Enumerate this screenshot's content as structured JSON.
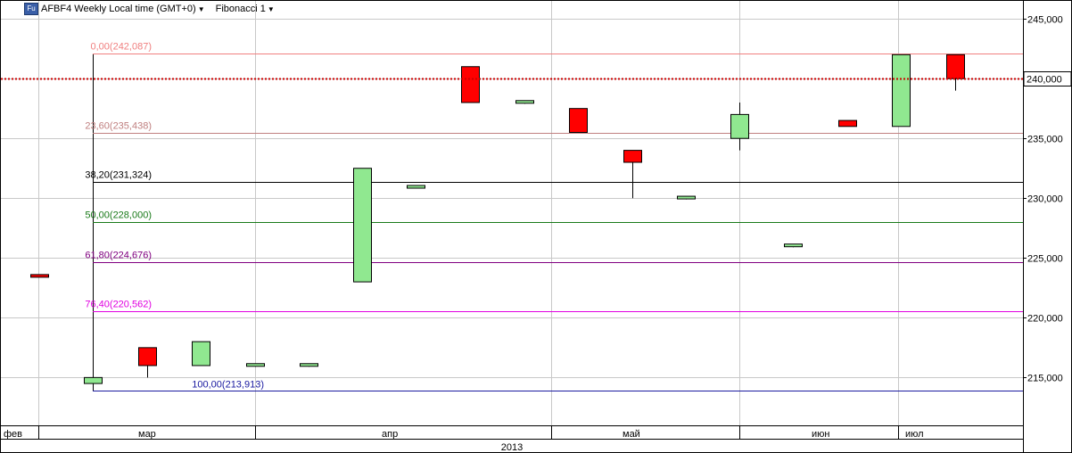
{
  "toolbar": {
    "symbol_icon": "Fu",
    "title": "AFBF4 Weekly Local time (GMT+0)",
    "indicator": "Fibonacci 1"
  },
  "colors": {
    "up": "#90e890",
    "down": "#ff0000",
    "grid": "#c8c8c8",
    "price_line": "#cc0000"
  },
  "chart_data": {
    "type": "candlestick",
    "symbol": "AFBF4",
    "timeframe": "Weekly",
    "ylim": [
      211000,
      246500
    ],
    "y_ticks": [
      "215,000",
      "220,000",
      "225,000",
      "230,000",
      "235,000",
      "240,000",
      "245,000"
    ],
    "y_tick_values": [
      215000,
      220000,
      225000,
      230000,
      235000,
      240000,
      245000
    ],
    "current_price": 240000,
    "current_price_label": "240,000",
    "month_labels": [
      "фев",
      "мар",
      "апр",
      "май",
      "июн",
      "июл"
    ],
    "year_label": "2013",
    "candles": [
      {
        "open": 223600,
        "high": 223600,
        "low": 223400,
        "close": 223400
      },
      {
        "open": 214500,
        "high": 215000,
        "low": 214000,
        "close": 215000
      },
      {
        "open": 217500,
        "high": 217500,
        "low": 215000,
        "close": 216000
      },
      {
        "open": 216000,
        "high": 218000,
        "low": 216000,
        "close": 218000
      },
      {
        "open": 216000,
        "high": 216100,
        "low": 215900,
        "close": 216100
      },
      {
        "open": 216000,
        "high": 216100,
        "low": 215900,
        "close": 216100
      },
      {
        "open": 223000,
        "high": 232500,
        "low": 223000,
        "close": 232500
      },
      {
        "open": 230900,
        "high": 231000,
        "low": 230800,
        "close": 231000
      },
      {
        "open": 241000,
        "high": 241000,
        "low": 238000,
        "close": 238000
      },
      {
        "open": 238000,
        "high": 238100,
        "low": 237900,
        "close": 238100
      },
      {
        "open": 237500,
        "high": 237500,
        "low": 235500,
        "close": 235500
      },
      {
        "open": 234000,
        "high": 234000,
        "low": 230000,
        "close": 233000
      },
      {
        "open": 230000,
        "high": 230100,
        "low": 229900,
        "close": 230100
      },
      {
        "open": 235000,
        "high": 238000,
        "low": 234000,
        "close": 237000
      },
      {
        "open": 226000,
        "high": 226100,
        "low": 225900,
        "close": 226100
      },
      {
        "open": 236500,
        "high": 236500,
        "low": 236000,
        "close": 236000
      },
      {
        "open": 236000,
        "high": 242000,
        "low": 236000,
        "close": 242000
      },
      {
        "open": 242000,
        "high": 242000,
        "low": 239000,
        "close": 240000
      }
    ],
    "fibonacci": [
      {
        "label": "0,00(242,087)",
        "price": 242087,
        "color": "#f08080"
      },
      {
        "label": "23,60(235,438)",
        "price": 235438,
        "color": "#c08080"
      },
      {
        "label": "38,20(231,324)",
        "price": 231324,
        "color": "#000000"
      },
      {
        "label": "50,00(228,000)",
        "price": 228000,
        "color": "#1a7a1a"
      },
      {
        "label": "61,80(224,676)",
        "price": 224676,
        "color": "#800080"
      },
      {
        "label": "76,40(220,562)",
        "price": 220562,
        "color": "#e000e0"
      },
      {
        "label": "100,00(213,913)",
        "price": 213913,
        "color": "#1a1aa0"
      }
    ]
  }
}
